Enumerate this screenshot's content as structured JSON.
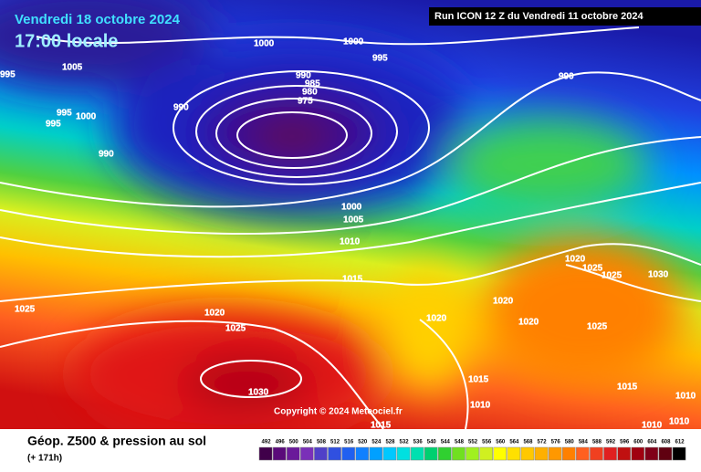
{
  "header": {
    "date": "Vendredi 18 octobre 2024",
    "time": "17:00 locale",
    "run": "Run ICON 12 Z du Vendredi 11 octobre 2024"
  },
  "copyright": "Copyright © 2024 Meteociel.fr",
  "isobar_labels": [
    "1000",
    "1000",
    "995",
    "1005",
    "995",
    "990",
    "985",
    "980",
    "975",
    "990",
    "995",
    "1000",
    "995",
    "990",
    "990",
    "1000",
    "1005",
    "1010",
    "1015",
    "1020",
    "1025",
    "1025",
    "1030",
    "1020",
    "1020",
    "1025",
    "1025",
    "1030",
    "1020",
    "1020",
    "1025",
    "1015",
    "1010",
    "1015",
    "1015",
    "1010",
    "1010",
    "1010"
  ],
  "legend": {
    "title": "Géop. Z500 & pression au sol",
    "lead_time": "(+ 171h)",
    "scale": [
      492,
      496,
      500,
      504,
      508,
      512,
      516,
      520,
      524,
      528,
      532,
      536,
      540,
      544,
      548,
      552,
      556,
      560,
      564,
      568,
      572,
      576,
      580,
      584,
      588,
      592,
      596,
      600,
      604,
      608,
      612
    ]
  }
}
